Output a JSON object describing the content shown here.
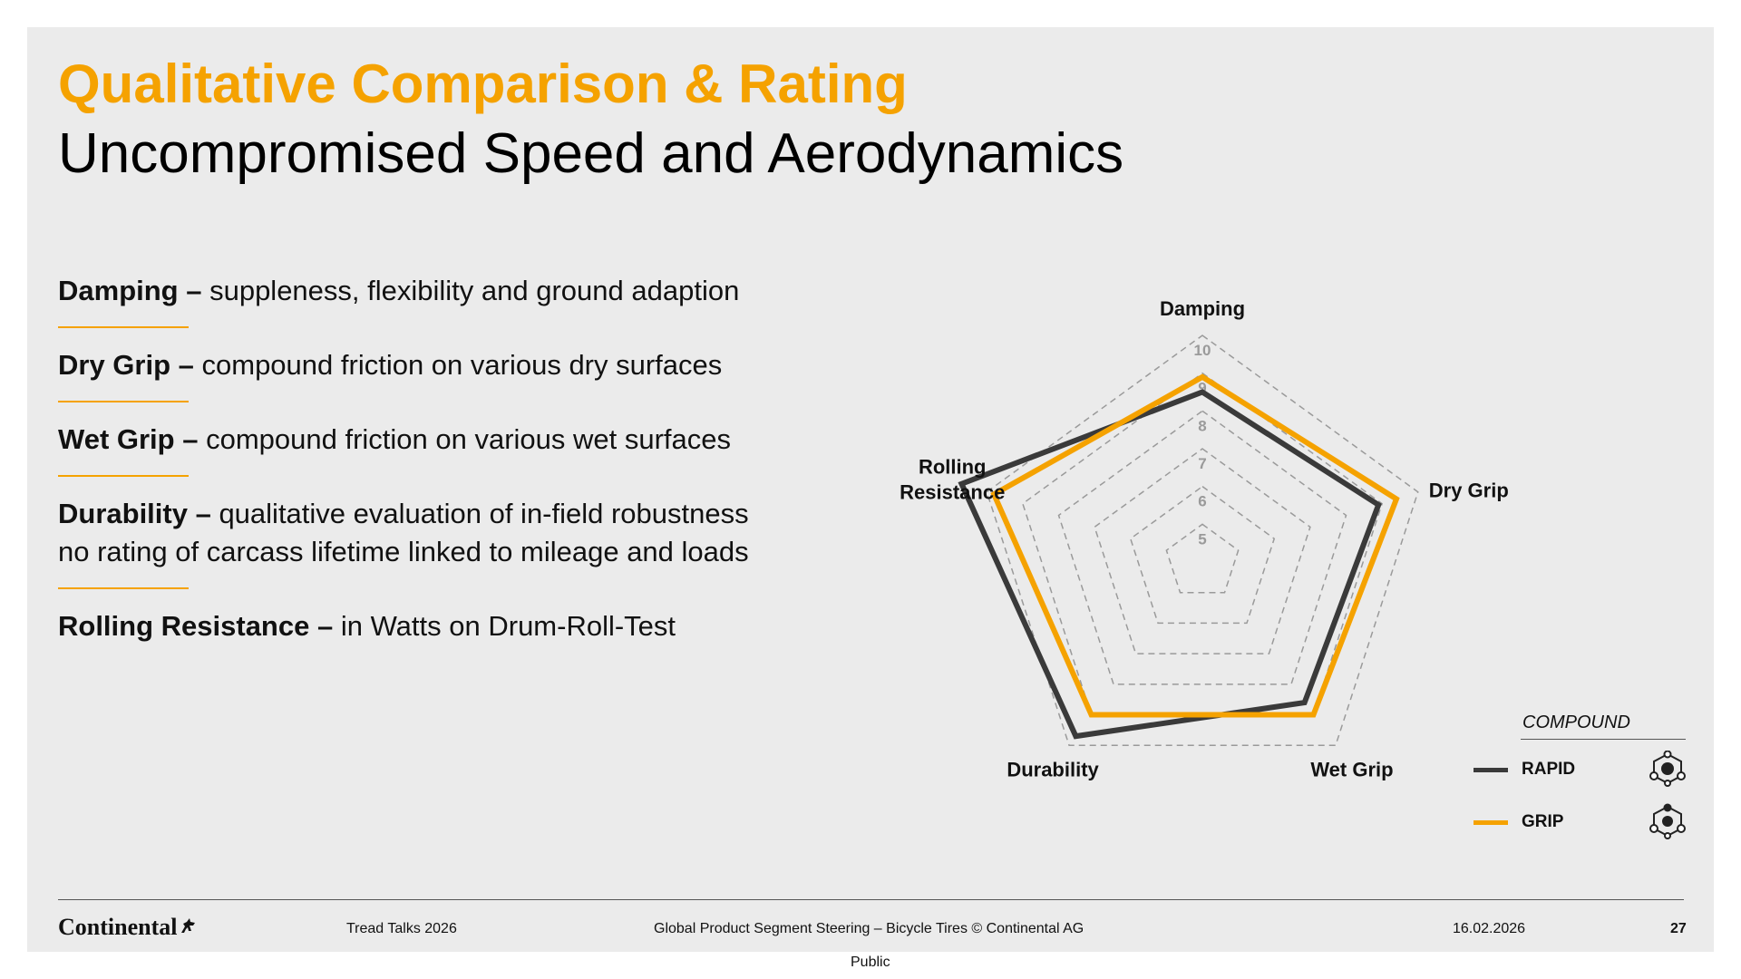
{
  "header": {
    "title": "Qualitative Comparison & Rating",
    "subtitle": "Uncompromised Speed and Aerodynamics"
  },
  "definitions": [
    {
      "term": "Damping –",
      "text": " suppleness, flexibility and ground adaption"
    },
    {
      "term": "Dry Grip –",
      "text": " compound friction on various dry surfaces"
    },
    {
      "term": "Wet Grip –",
      "text": " compound friction on various wet surfaces"
    },
    {
      "term": "Durability –",
      "text": " qualitative evaluation of in-field robustness",
      "line2": "no rating of carcass lifetime linked to mileage and loads"
    },
    {
      "term": "Rolling Resistance –",
      "text": " in Watts on Drum-Roll-Test"
    }
  ],
  "chart_data": {
    "type": "radar",
    "axes": [
      "Damping",
      "Dry Grip",
      "Wet Grip",
      "Durability",
      "Rolling Resistance"
    ],
    "axis_labels": [
      [
        "Damping"
      ],
      [
        "Dry Grip"
      ],
      [
        "Wet Grip"
      ],
      [
        "Durability"
      ],
      [
        "Rolling",
        "Resistance"
      ]
    ],
    "rmin": 4,
    "rmax": 10,
    "ticks": [
      5,
      6,
      7,
      8,
      9,
      10
    ],
    "series": [
      {
        "name": "RAPID",
        "color": "#3a3a3a",
        "values": [
          8.5,
          8.9,
          8.6,
          9.7,
          10.7
        ]
      },
      {
        "name": "GRIP",
        "color": "#f5a200",
        "values": [
          8.9,
          9.4,
          9.0,
          9.0,
          9.8
        ]
      }
    ]
  },
  "legend": {
    "title": "COMPOUND",
    "items": [
      {
        "label": "RAPID",
        "color": "#3a3a3a"
      },
      {
        "label": "GRIP",
        "color": "#f5a200"
      }
    ]
  },
  "footer": {
    "brand": "Continental",
    "event": "Tread Talks 2026",
    "center": "Global Product Segment Steering – Bicycle Tires © Continental AG",
    "date": "16.02.2026",
    "page": "27",
    "classification": "Public"
  }
}
